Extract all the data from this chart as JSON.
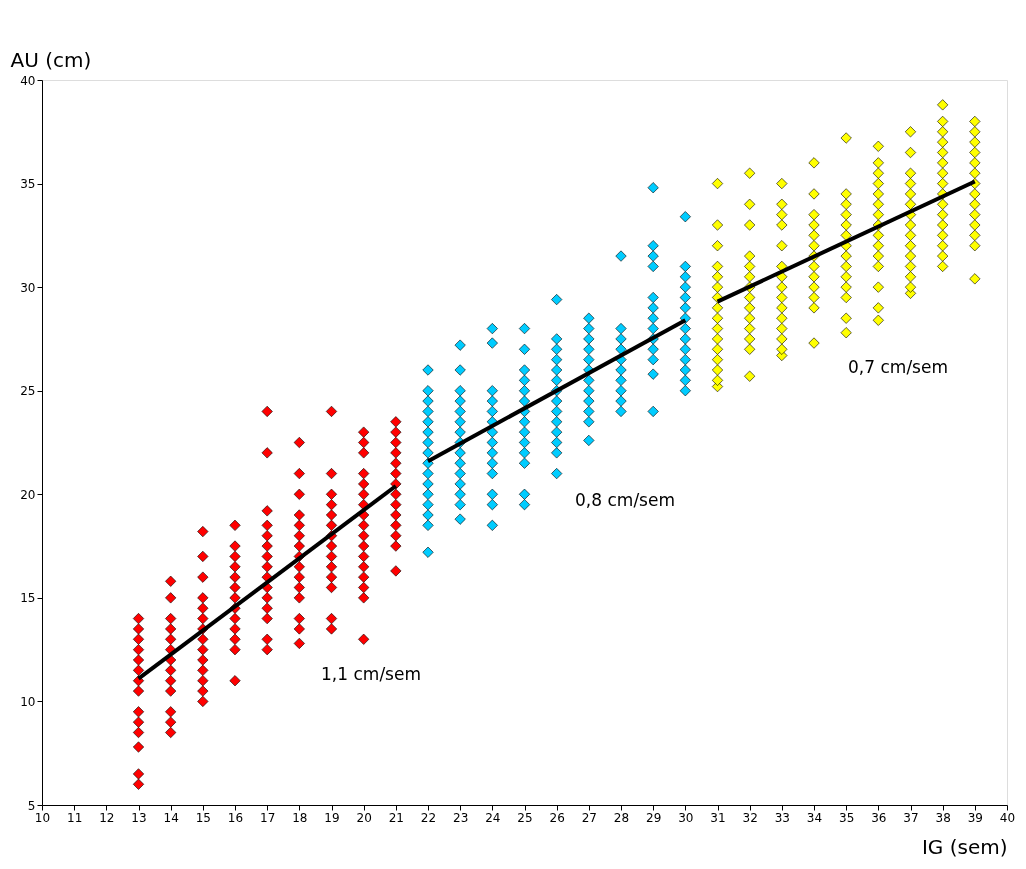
{
  "chart_data": {
    "type": "scatter",
    "xlabel": "IG (sem)",
    "ylabel": "AU (cm)",
    "xlim": [
      10,
      40
    ],
    "xticks": [
      10,
      11,
      12,
      13,
      14,
      15,
      16,
      17,
      18,
      19,
      20,
      21,
      22,
      23,
      24,
      25,
      26,
      27,
      28,
      29,
      30,
      31,
      32,
      33,
      34,
      35,
      36,
      37,
      38,
      39,
      40
    ],
    "ylim": [
      5,
      40
    ],
    "yticks": [
      5,
      10,
      15,
      20,
      25,
      30,
      35,
      40
    ],
    "grid": false,
    "marker": "diamond",
    "annotations": [
      "1,1 cm/sem",
      "0,8 cm/sem",
      "0,7 cm/sem"
    ],
    "series": [
      {
        "color": "#ff0000",
        "x": [
          13,
          13,
          13,
          13,
          13,
          13,
          13,
          13,
          13,
          13,
          13,
          13,
          13,
          13
        ],
        "values": [
          6,
          6.5,
          7.8,
          8.5,
          9,
          9.5,
          10.5,
          11,
          11.5,
          12,
          12.5,
          13,
          13.5,
          14
        ]
      },
      {
        "color": "#ff0000",
        "x": [
          14,
          14,
          14,
          14,
          14,
          14,
          14,
          14,
          14,
          14,
          14,
          14,
          14
        ],
        "values": [
          8.5,
          9,
          9.5,
          10.5,
          11,
          11.5,
          12,
          12.5,
          13,
          13.5,
          14,
          15,
          15.8
        ]
      },
      {
        "color": "#ff0000",
        "x": [
          15,
          15,
          15,
          15,
          15,
          15,
          15,
          15,
          15,
          15,
          15,
          15,
          15,
          15
        ],
        "values": [
          10,
          10.5,
          11,
          11.5,
          12,
          12.5,
          13,
          13.5,
          14,
          14.5,
          15,
          16,
          17,
          18.2
        ]
      },
      {
        "color": "#ff0000",
        "x": [
          16,
          16,
          16,
          16,
          16,
          16,
          16,
          16,
          16,
          16,
          16,
          16,
          16
        ],
        "values": [
          11,
          12.5,
          13,
          13.5,
          14,
          14.5,
          15,
          15.5,
          16,
          16.5,
          17,
          17.5,
          18.5
        ]
      },
      {
        "color": "#ff0000",
        "x": [
          17,
          17,
          17,
          17,
          17,
          17,
          17,
          17,
          17,
          17,
          17,
          17,
          17,
          17,
          17
        ],
        "values": [
          12.5,
          13,
          14,
          14.5,
          15,
          15.5,
          16,
          16.5,
          17,
          17.5,
          18,
          18.5,
          19.2,
          22,
          24
        ]
      },
      {
        "color": "#ff0000",
        "x": [
          18,
          18,
          18,
          18,
          18,
          18,
          18,
          18,
          18,
          18,
          18,
          18,
          18,
          18,
          18
        ],
        "values": [
          12.8,
          13.5,
          14,
          15,
          15.5,
          16,
          16.5,
          17,
          17.5,
          18,
          18.5,
          19,
          20,
          21,
          22.5
        ]
      },
      {
        "color": "#ff0000",
        "x": [
          19,
          19,
          19,
          19,
          19,
          19,
          19,
          19,
          19,
          19,
          19,
          19,
          19,
          19
        ],
        "values": [
          13.5,
          14,
          15.5,
          16,
          16.5,
          17,
          17.5,
          18,
          18.5,
          19,
          19.5,
          20,
          21,
          24
        ]
      },
      {
        "color": "#ff0000",
        "x": [
          20,
          20,
          20,
          20,
          20,
          20,
          20,
          20,
          20,
          20,
          20,
          20,
          20,
          20,
          20,
          20,
          20
        ],
        "values": [
          13,
          15,
          15.5,
          16,
          16.5,
          17,
          17.5,
          18,
          18.5,
          19,
          19.5,
          20,
          20.5,
          21,
          22,
          22.5,
          23
        ]
      },
      {
        "color": "#ff0000",
        "x": [
          21,
          21,
          21,
          21,
          21,
          21,
          21,
          21,
          21,
          21,
          21,
          21,
          21,
          21
        ],
        "values": [
          16.3,
          17.5,
          18,
          18.5,
          19,
          19.5,
          20,
          20.5,
          21,
          21.5,
          22,
          22.5,
          23,
          23.5
        ]
      },
      {
        "color": "#00ccff",
        "x": [
          22,
          22,
          22,
          22,
          22,
          22,
          22,
          22,
          22,
          22,
          22,
          22,
          22,
          22,
          22,
          22
        ],
        "values": [
          17.2,
          18.5,
          19,
          19.5,
          20,
          20.5,
          21,
          21.5,
          22,
          22.5,
          23,
          23.5,
          24,
          24.5,
          25,
          26
        ]
      },
      {
        "color": "#00ccff",
        "x": [
          23,
          23,
          23,
          23,
          23,
          23,
          23,
          23,
          23,
          23,
          23,
          23,
          23,
          23,
          23
        ],
        "values": [
          18.8,
          19.5,
          20,
          20.5,
          21,
          21.5,
          22,
          22.5,
          23,
          23.5,
          24,
          24.5,
          25,
          26,
          27.2
        ]
      },
      {
        "color": "#00ccff",
        "x": [
          24,
          24,
          24,
          24,
          24,
          24,
          24,
          24,
          24,
          24,
          24,
          24,
          24,
          24
        ],
        "values": [
          18.5,
          19.5,
          20,
          21,
          21.5,
          22,
          22.5,
          23,
          23.5,
          24,
          24.5,
          25,
          27.3,
          28
        ]
      },
      {
        "color": "#00ccff",
        "x": [
          25,
          25,
          25,
          25,
          25,
          25,
          25,
          25,
          25,
          25,
          25,
          25,
          25,
          25
        ],
        "values": [
          19.5,
          20,
          21.5,
          22,
          22.5,
          23,
          23.5,
          24,
          24.5,
          25,
          25.5,
          26,
          27,
          28
        ]
      },
      {
        "color": "#00ccff",
        "x": [
          26,
          26,
          26,
          26,
          26,
          26,
          26,
          26,
          26,
          26,
          26,
          26,
          26,
          26
        ],
        "values": [
          21,
          22,
          22.5,
          23,
          23.5,
          24,
          24.5,
          25,
          25.5,
          26,
          26.5,
          27,
          27.5,
          29.4
        ]
      },
      {
        "color": "#00ccff",
        "x": [
          27,
          27,
          27,
          27,
          27,
          27,
          27,
          27,
          27,
          27,
          27,
          27
        ],
        "values": [
          22.6,
          23.5,
          24,
          24.5,
          25,
          25.5,
          26,
          26.5,
          27,
          27.5,
          28,
          28.5
        ]
      },
      {
        "color": "#00ccff",
        "x": [
          28,
          28,
          28,
          28,
          28,
          28,
          28,
          28,
          28,
          28
        ],
        "values": [
          24,
          24.5,
          25,
          25.5,
          26,
          26.5,
          27,
          27.5,
          28,
          31.5
        ]
      },
      {
        "color": "#00ccff",
        "x": [
          29,
          29,
          29,
          29,
          29,
          29,
          29,
          29,
          29,
          29,
          29,
          29,
          29
        ],
        "values": [
          24,
          25.8,
          26.5,
          27,
          27.5,
          28,
          28.5,
          29,
          29.5,
          31,
          31.5,
          32,
          34.8
        ]
      },
      {
        "color": "#00ccff",
        "x": [
          30,
          30,
          30,
          30,
          30,
          30,
          30,
          30,
          30,
          30,
          30,
          30,
          30,
          30
        ],
        "values": [
          25,
          25.5,
          26,
          26.5,
          27,
          27.5,
          28,
          28.5,
          29,
          29.5,
          30,
          30.5,
          31,
          33.4
        ]
      },
      {
        "color": "#ffff00",
        "x": [
          31,
          31,
          31,
          31,
          31,
          31,
          31,
          31,
          31,
          31,
          31,
          31,
          31,
          31,
          31,
          31
        ],
        "values": [
          25.2,
          25.5,
          26,
          26.5,
          27,
          27.5,
          28,
          28.5,
          29,
          29.5,
          30,
          30.5,
          31,
          32,
          33,
          35
        ]
      },
      {
        "color": "#ffff00",
        "x": [
          32,
          32,
          32,
          32,
          32,
          32,
          32,
          32,
          32,
          32,
          32,
          32,
          32,
          32
        ],
        "values": [
          25.7,
          27,
          27.5,
          28,
          28.5,
          29,
          29.5,
          30,
          30.5,
          31,
          31.5,
          33,
          34,
          35.5
        ]
      },
      {
        "color": "#ffff00",
        "x": [
          33,
          33,
          33,
          33,
          33,
          33,
          33,
          33,
          33,
          33,
          33,
          33,
          33,
          33,
          33
        ],
        "values": [
          26.7,
          27,
          27.5,
          28,
          28.5,
          29,
          29.5,
          30,
          30.5,
          31,
          32,
          33,
          33.5,
          34,
          35
        ]
      },
      {
        "color": "#ffff00",
        "x": [
          34,
          34,
          34,
          34,
          34,
          34,
          34,
          34,
          34,
          34,
          34,
          34,
          34
        ],
        "values": [
          27.3,
          29,
          29.5,
          30,
          30.5,
          31,
          31.5,
          32,
          32.5,
          33,
          33.5,
          34.5,
          36
        ]
      },
      {
        "color": "#ffff00",
        "x": [
          35,
          35,
          35,
          35,
          35,
          35,
          35,
          35,
          35,
          35,
          35,
          35,
          35,
          35
        ],
        "values": [
          27.8,
          28.5,
          29.5,
          30,
          30.5,
          31,
          31.5,
          32,
          32.5,
          33,
          33.5,
          34,
          34.5,
          37.2
        ]
      },
      {
        "color": "#ffff00",
        "x": [
          36,
          36,
          36,
          36,
          36,
          36,
          36,
          36,
          36,
          36,
          36,
          36,
          36,
          36,
          36
        ],
        "values": [
          28.4,
          29,
          30,
          31,
          31.5,
          32,
          32.5,
          33,
          33.5,
          34,
          34.5,
          35,
          35.5,
          36,
          36.8
        ]
      },
      {
        "color": "#ffff00",
        "x": [
          37,
          37,
          37,
          37,
          37,
          37,
          37,
          37,
          37,
          37,
          37,
          37,
          37,
          37,
          37
        ],
        "values": [
          29.7,
          30,
          30.5,
          31,
          31.5,
          32,
          32.5,
          33,
          33.5,
          34,
          34.5,
          35,
          35.5,
          36.5,
          37.5
        ]
      },
      {
        "color": "#ffff00",
        "x": [
          38,
          38,
          38,
          38,
          38,
          38,
          38,
          38,
          38,
          38,
          38,
          38,
          38,
          38,
          38,
          38
        ],
        "values": [
          31,
          31.5,
          32,
          32.5,
          33,
          33.5,
          34,
          34.5,
          35,
          35.5,
          36,
          36.5,
          37,
          37.5,
          38,
          38.8
        ]
      },
      {
        "color": "#ffff00",
        "x": [
          39,
          39,
          39,
          39,
          39,
          39,
          39,
          39,
          39,
          39,
          39,
          39,
          39,
          39
        ],
        "values": [
          30.4,
          32,
          32.5,
          33,
          33.5,
          34,
          34.5,
          35,
          35.5,
          36,
          36.5,
          37,
          37.5,
          38
        ]
      },
      {
        "type": "line",
        "marker": "none",
        "color": "#000000",
        "x": [
          13,
          21
        ],
        "values": [
          11.1,
          20.4
        ]
      },
      {
        "type": "line",
        "marker": "none",
        "color": "#000000",
        "x": [
          22,
          30
        ],
        "values": [
          21.6,
          28.4
        ]
      },
      {
        "type": "line",
        "marker": "none",
        "color": "#000000",
        "x": [
          31,
          39
        ],
        "values": [
          29.3,
          35.1
        ]
      }
    ]
  }
}
